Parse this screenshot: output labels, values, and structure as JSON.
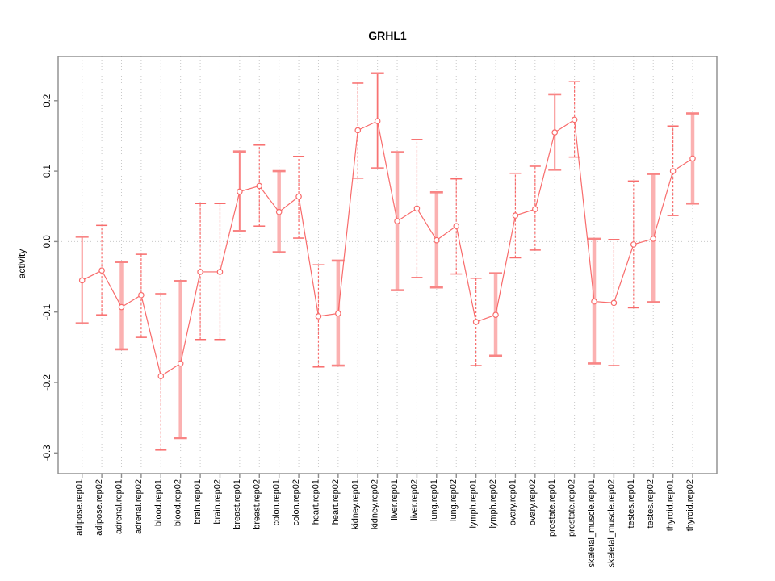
{
  "chart_data": {
    "type": "line",
    "title": "GRHL1",
    "ylabel": "activity",
    "xlabel": "",
    "legend": "none",
    "grid": "vertical dotted gridline per category plus dotted horizontal line at y=0",
    "ylim": [
      -0.3294,
      0.2628
    ],
    "yticks": {
      "values": [
        0.2,
        0.1,
        0.0,
        -0.1,
        -0.2,
        -0.3
      ],
      "labels": [
        "0.2",
        "0.1",
        "0.0",
        "-0.1",
        "-0.2",
        "-0.3"
      ]
    },
    "categories": [
      "adipose.rep01",
      "adipose.rep02",
      "adrenal.rep01",
      "adrenal.rep02",
      "blood.rep01",
      "blood.rep02",
      "brain.rep01",
      "brain.rep02",
      "breast.rep01",
      "breast.rep02",
      "colon.rep01",
      "colon.rep02",
      "heart.rep01",
      "heart.rep02",
      "kidney.rep01",
      "kidney.rep02",
      "liver.rep01",
      "liver.rep02",
      "lung.rep01",
      "lung.rep02",
      "lymph.rep01",
      "lymph.rep02",
      "ovary.rep01",
      "ovary.rep02",
      "prostate.rep01",
      "prostate.rep02",
      "skeletal_muscle.rep01",
      "skeletal_muscle.rep02",
      "testes.rep01",
      "testes.rep02",
      "thyroid.rep01",
      "thyroid.rep02"
    ],
    "series": [
      {
        "name": "activity",
        "values": [
          -0.055,
          -0.041,
          -0.093,
          -0.076,
          -0.191,
          -0.173,
          -0.043,
          -0.043,
          0.071,
          0.079,
          0.042,
          0.064,
          -0.106,
          -0.102,
          0.158,
          0.171,
          0.029,
          0.047,
          0.002,
          0.022,
          -0.114,
          -0.104,
          0.037,
          0.046,
          0.155,
          0.173,
          -0.085,
          -0.087,
          -0.004,
          0.004,
          0.1,
          0.118
        ],
        "error_low": [
          -0.116,
          -0.104,
          -0.153,
          -0.136,
          -0.296,
          -0.279,
          -0.139,
          -0.139,
          0.015,
          0.022,
          -0.015,
          0.005,
          -0.178,
          -0.176,
          0.09,
          0.104,
          -0.069,
          -0.051,
          -0.065,
          -0.046,
          -0.176,
          -0.162,
          -0.023,
          -0.012,
          0.102,
          0.12,
          -0.173,
          -0.176,
          -0.094,
          -0.086,
          0.037,
          0.054
        ],
        "error_high": [
          0.007,
          0.023,
          -0.029,
          -0.018,
          -0.074,
          -0.056,
          0.054,
          0.054,
          0.128,
          0.137,
          0.1,
          0.121,
          -0.033,
          -0.027,
          0.225,
          0.239,
          0.127,
          0.145,
          0.07,
          0.089,
          -0.052,
          -0.045,
          0.097,
          0.107,
          0.209,
          0.227,
          0.004,
          0.003,
          0.086,
          0.096,
          0.164,
          0.182
        ],
        "bar_styles": [
          "solid",
          "dashed",
          "wide",
          "dashed",
          "dashed",
          "wide",
          "dashed",
          "dashed",
          "solid",
          "dashed",
          "wide",
          "dashed",
          "dashed",
          "wide",
          "dashed",
          "solid",
          "wide",
          "dashed",
          "wide",
          "dashed",
          "dashed",
          "wide",
          "dashed",
          "dashed",
          "solid",
          "dashed",
          "wide",
          "dashed",
          "dashed",
          "wide",
          "dashed",
          "wide"
        ]
      }
    ],
    "marker": "open-circle",
    "colors": {
      "series": "#f86b6b",
      "light_bar": "#fbb1b1",
      "gridline": "#c9c9c9",
      "box": "#8c8c8c",
      "text": "#000000",
      "background": "#ffffff"
    }
  }
}
